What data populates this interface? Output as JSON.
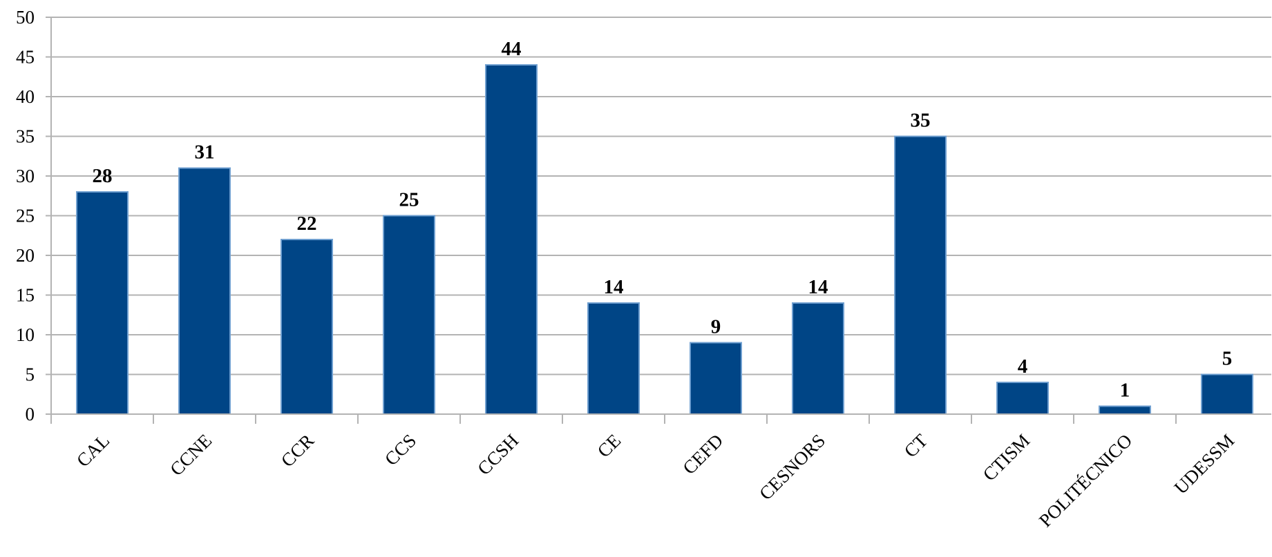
{
  "chart_data": {
    "type": "bar",
    "categories": [
      "CAL",
      "CCNE",
      "CCR",
      "CCS",
      "CCSH",
      "CE",
      "CEFD",
      "CESNORS",
      "CT",
      "CTISM",
      "POLITÉCNICO",
      "UDESSM"
    ],
    "values": [
      28,
      31,
      22,
      25,
      44,
      14,
      9,
      14,
      35,
      4,
      1,
      5
    ],
    "y_ticks": [
      "0",
      "5",
      "10",
      "15",
      "20",
      "25",
      "30",
      "35",
      "40",
      "45",
      "50"
    ],
    "ylim": [
      0,
      50
    ],
    "grid": true,
    "data_labels": true,
    "bar_color": "#004586",
    "bar_edge_color": "#6f9fd0",
    "gridline_color": "#b3b3b3",
    "legend": "none"
  }
}
